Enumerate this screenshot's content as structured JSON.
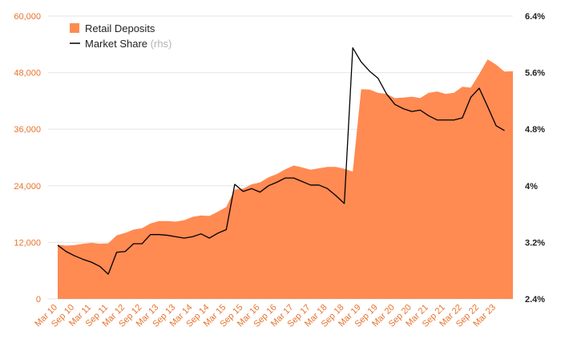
{
  "chart_data": {
    "type": "area",
    "x_tick_labels": [
      "Mar 10",
      "Sep 10",
      "Mar 11",
      "Sep 11",
      "Mar 12",
      "Sep 12",
      "Mar 13",
      "Sep 13",
      "Mar 14",
      "Sep 14",
      "Mar 15",
      "Sep 15",
      "Mar 16",
      "Sep 16",
      "Mar 17",
      "Sep 17",
      "Mar 18",
      "Sep 18",
      "Mar 19",
      "Sep 19",
      "Mar 20",
      "Sep 20",
      "Mar 21",
      "Sep 21",
      "Mar 22",
      "Sep 22",
      "Mar 23"
    ],
    "y_left": {
      "min": 0,
      "max": 60000,
      "ticks": [
        "0",
        "12,000",
        "24,000",
        "36,000",
        "48,000",
        "60,000"
      ]
    },
    "y_right": {
      "min": 2.4,
      "max": 6.4,
      "unit": "%",
      "ticks": [
        "2.4%",
        "3.2%",
        "4%",
        "4.8%",
        "5.6%",
        "6.4%"
      ]
    },
    "grid": true,
    "legend_position": "top-left",
    "legend": [
      {
        "label": "Retail Deposits",
        "suffix": "",
        "color": "#ff8a52",
        "marker": "square"
      },
      {
        "label": "Market Share",
        "suffix": " (rhs)",
        "color": "#000000",
        "marker": "line"
      }
    ],
    "series": [
      {
        "name": "Retail Deposits",
        "axis": "left",
        "kind": "area",
        "color": "#ff8a52",
        "points": [
          [
            0,
            11500
          ],
          [
            1,
            11300
          ],
          [
            2,
            11400
          ],
          [
            3,
            11700
          ],
          [
            4,
            11900
          ],
          [
            5,
            11700
          ],
          [
            6,
            11800
          ],
          [
            7,
            13500
          ],
          [
            8,
            14000
          ],
          [
            9,
            14700
          ],
          [
            10,
            15000
          ],
          [
            11,
            16000
          ],
          [
            12,
            16500
          ],
          [
            13,
            16500
          ],
          [
            14,
            16400
          ],
          [
            15,
            16700
          ],
          [
            16,
            17400
          ],
          [
            17,
            17700
          ],
          [
            18,
            17600
          ],
          [
            19,
            18500
          ],
          [
            20,
            19500
          ],
          [
            21,
            23200
          ],
          [
            22,
            23400
          ],
          [
            23,
            24300
          ],
          [
            24,
            24700
          ],
          [
            25,
            25800
          ],
          [
            26,
            26500
          ],
          [
            27,
            27500
          ],
          [
            28,
            28300
          ],
          [
            29,
            27900
          ],
          [
            30,
            27400
          ],
          [
            31,
            27700
          ],
          [
            32,
            28000
          ],
          [
            33,
            28000
          ],
          [
            34,
            27600
          ],
          [
            35,
            27000
          ],
          [
            36,
            44500
          ],
          [
            37,
            44400
          ],
          [
            38,
            43700
          ],
          [
            39,
            43500
          ],
          [
            40,
            42600
          ],
          [
            41,
            42700
          ],
          [
            42,
            42900
          ],
          [
            43,
            42600
          ],
          [
            44,
            43700
          ],
          [
            45,
            44000
          ],
          [
            46,
            43500
          ],
          [
            47,
            43700
          ],
          [
            48,
            45000
          ],
          [
            49,
            44800
          ],
          [
            50,
            47700
          ],
          [
            51,
            50800
          ],
          [
            52,
            49700
          ],
          [
            53,
            48200
          ],
          [
            54,
            48300
          ]
        ]
      },
      {
        "name": "Market Share",
        "axis": "right",
        "kind": "line",
        "color": "#000000",
        "points": [
          [
            0,
            3.16
          ],
          [
            1,
            3.07
          ],
          [
            2,
            3.01
          ],
          [
            3,
            2.96
          ],
          [
            4,
            2.92
          ],
          [
            5,
            2.86
          ],
          [
            6,
            2.75
          ],
          [
            7,
            3.06
          ],
          [
            8,
            3.07
          ],
          [
            9,
            3.18
          ],
          [
            10,
            3.18
          ],
          [
            11,
            3.31
          ],
          [
            12,
            3.31
          ],
          [
            13,
            3.3
          ],
          [
            14,
            3.28
          ],
          [
            15,
            3.26
          ],
          [
            16,
            3.28
          ],
          [
            17,
            3.32
          ],
          [
            18,
            3.26
          ],
          [
            19,
            3.33
          ],
          [
            20,
            3.38
          ],
          [
            21,
            4.02
          ],
          [
            22,
            3.92
          ],
          [
            23,
            3.96
          ],
          [
            24,
            3.91
          ],
          [
            25,
            4.0
          ],
          [
            26,
            4.05
          ],
          [
            27,
            4.11
          ],
          [
            28,
            4.11
          ],
          [
            29,
            4.06
          ],
          [
            30,
            4.01
          ],
          [
            31,
            4.01
          ],
          [
            32,
            3.96
          ],
          [
            33,
            3.86
          ],
          [
            34,
            3.75
          ],
          [
            35,
            5.95
          ],
          [
            36,
            5.75
          ],
          [
            37,
            5.62
          ],
          [
            38,
            5.52
          ],
          [
            39,
            5.3
          ],
          [
            40,
            5.15
          ],
          [
            41,
            5.09
          ],
          [
            42,
            5.05
          ],
          [
            43,
            5.07
          ],
          [
            44,
            4.99
          ],
          [
            45,
            4.93
          ],
          [
            46,
            4.93
          ],
          [
            47,
            4.93
          ],
          [
            48,
            4.96
          ],
          [
            49,
            5.25
          ],
          [
            50,
            5.38
          ],
          [
            51,
            5.12
          ],
          [
            52,
            4.85
          ],
          [
            53,
            4.78
          ]
        ]
      }
    ]
  }
}
